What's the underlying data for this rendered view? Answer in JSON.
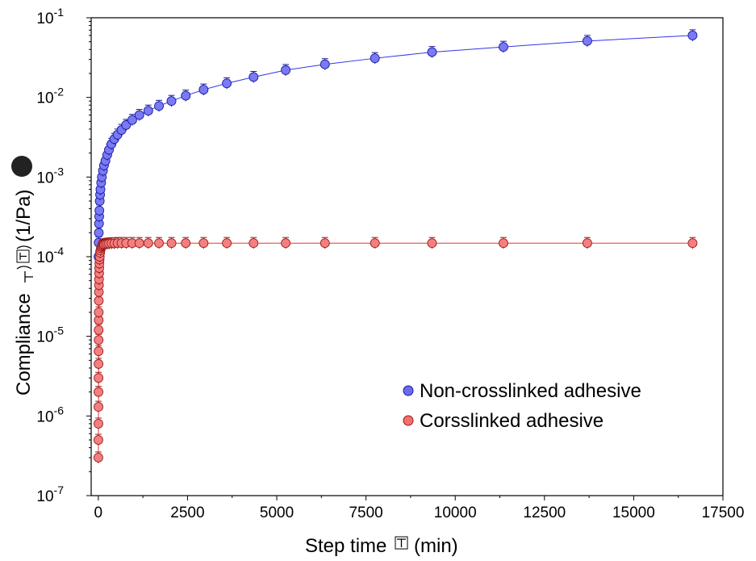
{
  "chart_data": {
    "type": "scatter",
    "xlabel": "Step time",
    "xlabel_unit": "(min)",
    "ylabel": "Compliance",
    "ylabel_unit": "(1/Pa)",
    "xlim": [
      -200,
      17500
    ],
    "ylim": [
      1e-07,
      0.1
    ],
    "yscale": "log",
    "grid": false,
    "legend_position": "lower-right",
    "x_ticks": [
      "0",
      "2500",
      "5000",
      "7500",
      "10000",
      "12500",
      "15000",
      "17500"
    ],
    "y_ticks": [
      {
        "base": "10",
        "exp": "-7"
      },
      {
        "base": "10",
        "exp": "-6"
      },
      {
        "base": "10",
        "exp": "-5"
      },
      {
        "base": "10",
        "exp": "-4"
      },
      {
        "base": "10",
        "exp": "-3"
      },
      {
        "base": "10",
        "exp": "-2"
      },
      {
        "base": "10",
        "exp": "-1"
      }
    ],
    "series": [
      {
        "name": "Non-crosslinked adhesive",
        "color": "#3333ee",
        "x": [
          5,
          10,
          15,
          20,
          25,
          30,
          40,
          50,
          60,
          80,
          100,
          130,
          160,
          200,
          250,
          300,
          370,
          450,
          540,
          650,
          780,
          950,
          1150,
          1400,
          1700,
          2050,
          2450,
          2950,
          3600,
          4350,
          5250,
          6350,
          7750,
          9350,
          11350,
          13700,
          16650
        ],
        "y": [
          0.0001,
          0.00015,
          0.0002,
          0.00026,
          0.00032,
          0.00038,
          0.0005,
          0.0006,
          0.0007,
          0.00085,
          0.001,
          0.0012,
          0.0014,
          0.0016,
          0.0019,
          0.0022,
          0.0026,
          0.003,
          0.0034,
          0.0039,
          0.0045,
          0.0052,
          0.006,
          0.0068,
          0.0078,
          0.009,
          0.0105,
          0.0125,
          0.015,
          0.018,
          0.022,
          0.026,
          0.031,
          0.037,
          0.043,
          0.051,
          0.06
        ]
      },
      {
        "name": "Corsslinked adhesive",
        "color": "#ee3333",
        "x": [
          1,
          2,
          3,
          4,
          5,
          6,
          7,
          8,
          9,
          10,
          11,
          12,
          14,
          16,
          18,
          20,
          23,
          26,
          30,
          35,
          40,
          50,
          60,
          75,
          90,
          110,
          135,
          160,
          200,
          250,
          300,
          370,
          450,
          540,
          650,
          780,
          950,
          1150,
          1400,
          1700,
          2050,
          2450,
          2950,
          3600,
          4350,
          5250,
          6350,
          7750,
          9350,
          11350,
          13700,
          16650
        ],
        "y": [
          3e-07,
          5e-07,
          8e-07,
          1.3e-06,
          2e-06,
          3e-06,
          4.5e-06,
          6.5e-06,
          9e-06,
          1.2e-05,
          1.6e-05,
          2e-05,
          2.8e-05,
          3.6e-05,
          4.4e-05,
          5.2e-05,
          6.2e-05,
          7.2e-05,
          8.2e-05,
          9.2e-05,
          0.0001,
          0.000112,
          0.00012,
          0.000128,
          0.000133,
          0.000137,
          0.00014,
          0.000142,
          0.000144,
          0.000145,
          0.000146,
          0.000147,
          0.000147,
          0.000148,
          0.000148,
          0.000148,
          0.000148,
          0.000148,
          0.000148,
          0.000148,
          0.000148,
          0.000148,
          0.000148,
          0.000148,
          0.000148,
          0.000148,
          0.000148,
          0.000148,
          0.000148,
          0.000148,
          0.000148,
          0.000148
        ]
      }
    ]
  }
}
